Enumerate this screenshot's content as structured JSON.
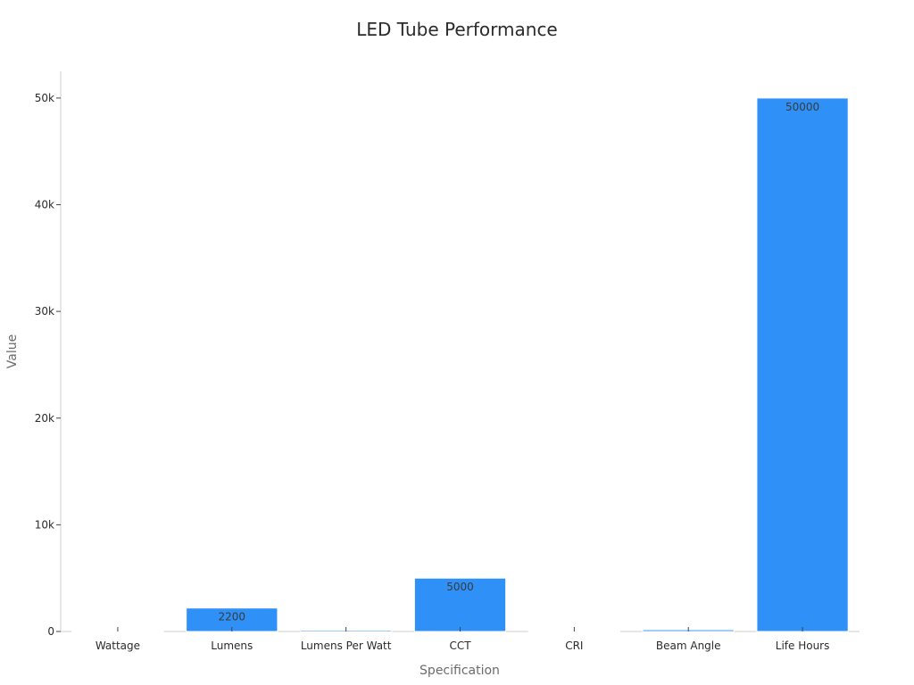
{
  "chart_data": {
    "type": "bar",
    "title": "LED Tube Performance",
    "xlabel": "Specification",
    "ylabel": "Value",
    "categories": [
      "Wattage",
      "Lumens",
      "Lumens Per Watt",
      "CCT",
      "CRI",
      "Beam Angle",
      "Life Hours"
    ],
    "values": [
      18,
      2200,
      122,
      5000,
      80,
      160,
      50000
    ],
    "data_labels": [
      "",
      "2200",
      "",
      "5000",
      "",
      "",
      "50000"
    ],
    "ylim": [
      0,
      52500
    ],
    "yticks": [
      0,
      10000,
      20000,
      30000,
      40000,
      50000
    ],
    "ytick_labels": [
      "0",
      "10k",
      "20k",
      "30k",
      "40k",
      "50k"
    ],
    "grid": false,
    "bar_color": "#2f91f7"
  }
}
